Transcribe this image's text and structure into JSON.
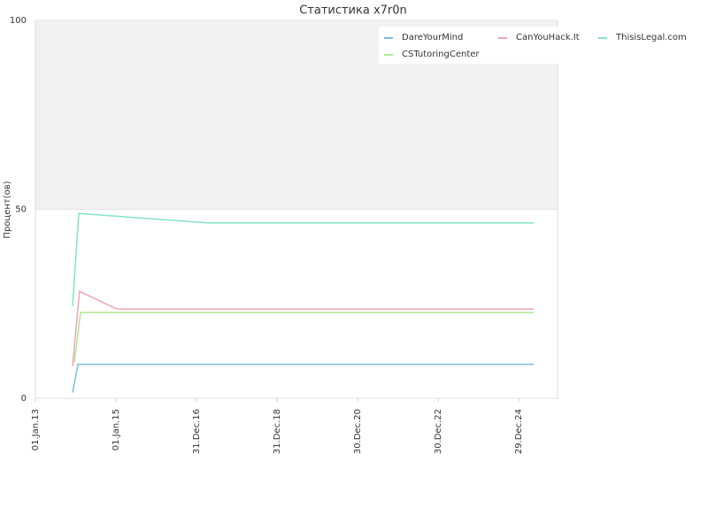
{
  "chart_data": {
    "type": "line",
    "title": "Статистика x7r0n",
    "y_label": "Процент(ов)",
    "xlim": [
      "2013-01-01",
      "2025-12-15"
    ],
    "xticks": [
      {
        "value": "2013-01-01",
        "label": "01.Jan.13"
      },
      {
        "value": "2015-01-01",
        "label": "01.Jan.15"
      },
      {
        "value": "2016-12-31",
        "label": "31.Dec.16"
      },
      {
        "value": "2018-12-31",
        "label": "31.Dec.18"
      },
      {
        "value": "2020-12-30",
        "label": "30.Dec.20"
      },
      {
        "value": "2022-12-30",
        "label": "30.Dec.22"
      },
      {
        "value": "2024-12-29",
        "label": "29.Dec.24"
      }
    ],
    "ylim": [
      0,
      100
    ],
    "yticks": [
      0,
      50,
      100
    ],
    "grid": true,
    "series": [
      {
        "name": "DareYourMind",
        "color": "#7cbbe2",
        "x": [
          "2013-12-04",
          "2014-01-22",
          "2025-05-15"
        ],
        "values": [
          1.5,
          9,
          9
        ]
      },
      {
        "name": "CanYouHack.It",
        "color": "#f2a3ba",
        "x": [
          "2013-12-04",
          "2014-02-05",
          "2015-01-09",
          "2025-05-15"
        ],
        "values": [
          8.5,
          28.3,
          23.6,
          23.6
        ]
      },
      {
        "name": "ThisisLegal.com",
        "color": "#84e3c9",
        "x": [
          "2013-12-04",
          "2014-01-29",
          "2017-04-14",
          "2025-05-15"
        ],
        "values": [
          24.4,
          48.9,
          46.4,
          46.4
        ]
      },
      {
        "name": "CSTutoringCenter",
        "color": "#ace891",
        "x": [
          "2013-12-20",
          "2014-02-14",
          "2025-05-15"
        ],
        "values": [
          9.5,
          22.7,
          22.7
        ]
      }
    ]
  }
}
